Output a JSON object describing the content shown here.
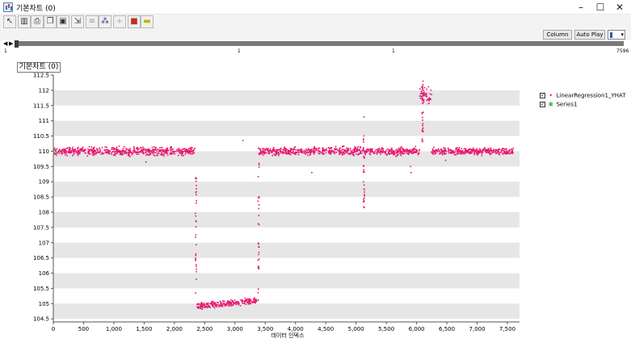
{
  "window": {
    "title": "기본차트 (0)"
  },
  "toolbar": {
    "buttons": [
      "pointer-icon",
      "columns-icon",
      "print-icon",
      "copy-icon",
      "save-icon",
      "export-icon",
      "align-icon",
      "scatter-icon",
      "crosshair-icon",
      "color-icon",
      "fill-icon"
    ],
    "column_label": "Column",
    "autoplay_label": "Auto Play"
  },
  "ruler": {
    "left": "1",
    "mid1": "1",
    "mid2": "1",
    "right": "7596"
  },
  "chart": {
    "title": "기본차트 (0)"
  },
  "legend": {
    "items": [
      {
        "label": "LinearRegression1_YHAT",
        "color": "#e8146c",
        "checked": true
      },
      {
        "label": "Series1",
        "color": "#3cb84a",
        "checked": true
      }
    ]
  },
  "chart_data": {
    "type": "scatter",
    "xlabel": "데이터 인덱스",
    "ylabel": "",
    "xlim": [
      0,
      7700
    ],
    "ylim": [
      104.4,
      112.5
    ],
    "x_ticks": [
      "0",
      "500",
      "1,000",
      "1,500",
      "2,000",
      "2,500",
      "3,000",
      "3,500",
      "4,000",
      "4,500",
      "5,000",
      "5,500",
      "6,000",
      "6,500",
      "7,000",
      "7,500"
    ],
    "y_ticks": [
      "104.5",
      "105",
      "105.5",
      "106",
      "106.5",
      "107",
      "107.5",
      "108",
      "108.5",
      "109",
      "109.5",
      "110",
      "110.5",
      "111",
      "111.5",
      "112",
      "112.5"
    ],
    "grid": "alternating-bands",
    "legend": "right",
    "series": [
      {
        "name": "LinearRegression1_YHAT",
        "color": "#e8146c",
        "segments": [
          {
            "x_start": 0,
            "x_end": 2350,
            "level": 110.0,
            "spread": 0.12
          },
          {
            "x_start": 2370,
            "x_end": 3380,
            "level_start": 104.9,
            "level_end": 105.1,
            "spread": 0.1
          },
          {
            "x_start": 3400,
            "x_end": 6050,
            "level": 110.0,
            "spread": 0.12
          },
          {
            "x_start": 6050,
            "x_end": 6250,
            "level": 111.8,
            "spread": 0.25
          },
          {
            "x_start": 6250,
            "x_end": 7600,
            "level": 110.0,
            "spread": 0.1
          }
        ],
        "transitions": [
          {
            "x": 2355,
            "y_from": 109.9,
            "y_to": 105.3
          },
          {
            "x": 3390,
            "y_from": 105.1,
            "y_to": 110.2
          },
          {
            "x": 5130,
            "y_from": 111.3,
            "y_to": 108.1
          },
          {
            "x": 6100,
            "y_from": 110.2,
            "y_to": 112.3
          }
        ],
        "outliers": [
          {
            "x": 4270,
            "y": 109.3
          },
          {
            "x": 5900,
            "y": 109.5
          },
          {
            "x": 5910,
            "y": 109.3
          },
          {
            "x": 1530,
            "y": 109.65
          },
          {
            "x": 3130,
            "y": 110.35
          },
          {
            "x": 6480,
            "y": 109.7
          }
        ]
      },
      {
        "name": "Series1",
        "color": "#3cb84a",
        "points": [
          {
            "x": 10,
            "y": 109.95
          },
          {
            "x": 40,
            "y": 110.05
          }
        ]
      }
    ]
  }
}
